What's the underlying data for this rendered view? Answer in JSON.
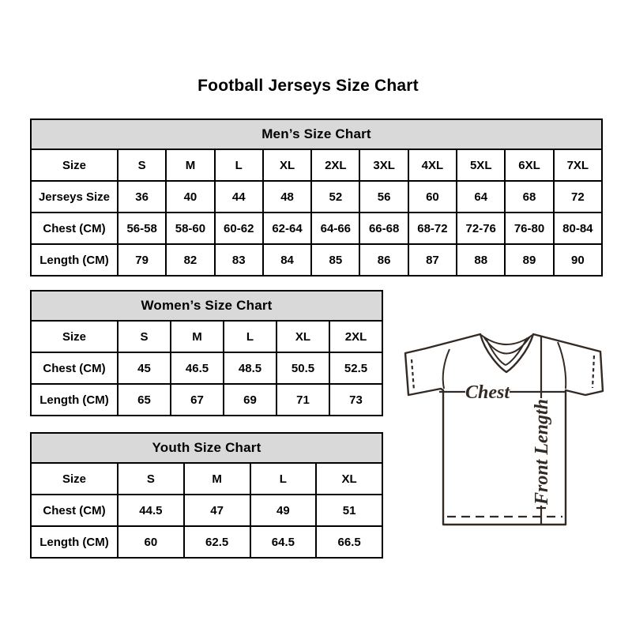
{
  "title": "Football Jerseys Size Chart",
  "tables": {
    "men": {
      "header": "Men’s Size Chart",
      "rows": [
        {
          "label": "Size",
          "values": [
            "S",
            "M",
            "L",
            "XL",
            "2XL",
            "3XL",
            "4XL",
            "5XL",
            "6XL",
            "7XL"
          ]
        },
        {
          "label": "Jerseys Size",
          "values": [
            "36",
            "40",
            "44",
            "48",
            "52",
            "56",
            "60",
            "64",
            "68",
            "72"
          ]
        },
        {
          "label": "Chest (CM)",
          "values": [
            "56-58",
            "58-60",
            "60-62",
            "62-64",
            "64-66",
            "66-68",
            "68-72",
            "72-76",
            "76-80",
            "80-84"
          ]
        },
        {
          "label": "Length (CM)",
          "values": [
            "79",
            "82",
            "83",
            "84",
            "85",
            "86",
            "87",
            "88",
            "89",
            "90"
          ]
        }
      ]
    },
    "women": {
      "header": "Women’s Size Chart",
      "rows": [
        {
          "label": "Size",
          "values": [
            "S",
            "M",
            "L",
            "XL",
            "2XL"
          ]
        },
        {
          "label": "Chest (CM)",
          "values": [
            "45",
            "46.5",
            "48.5",
            "50.5",
            "52.5"
          ]
        },
        {
          "label": "Length (CM)",
          "values": [
            "65",
            "67",
            "69",
            "71",
            "73"
          ]
        }
      ]
    },
    "youth": {
      "header": "Youth Size Chart",
      "rows": [
        {
          "label": "Size",
          "values": [
            "S",
            "M",
            "L",
            "XL"
          ]
        },
        {
          "label": "Chest (CM)",
          "values": [
            "44.5",
            "47",
            "49",
            "51"
          ]
        },
        {
          "label": "Length (CM)",
          "values": [
            "60",
            "62.5",
            "64.5",
            "66.5"
          ]
        }
      ]
    }
  },
  "diagram": {
    "chest_label": "Chest",
    "front_length_label": "Front Length"
  },
  "colors": {
    "header_bg": "#d9d9d9",
    "table_border": "#000000",
    "text": "#000000",
    "jersey_outline": "#332a24"
  }
}
